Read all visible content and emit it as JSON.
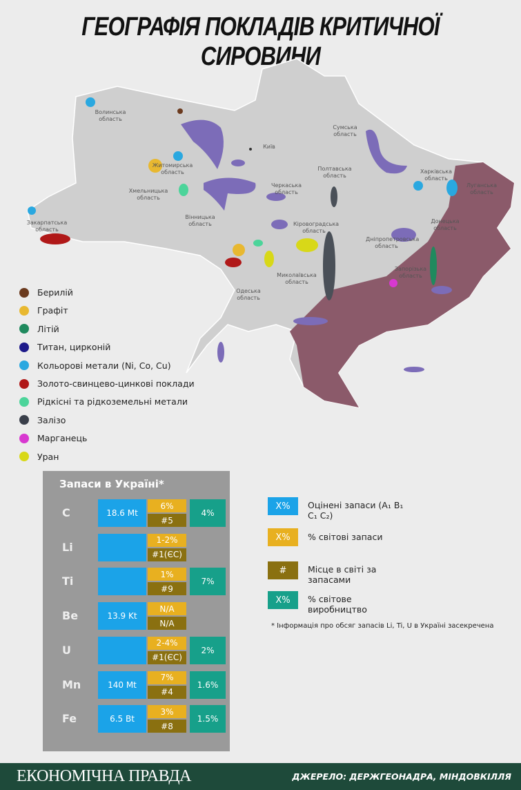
{
  "header": {
    "title": "ГЕОГРАФІЯ ПОКЛАДІВ КРИТИЧНОЇ СИРОВИНИ"
  },
  "map": {
    "regions": [
      "Волинська область",
      "Житомирська область",
      "Хмельницька область",
      "Вінницька область",
      "Закарпатська область",
      "Київ",
      "Черкаська область",
      "Сумська область",
      "Полтавська область",
      "Харківська область",
      "Луганська область",
      "Кіровоградська область",
      "Дніпропетровська область",
      "Донецька область",
      "Запорізька область",
      "Миколаївська область",
      "Одеська область"
    ]
  },
  "legend": {
    "items": [
      {
        "label": "Берилій",
        "color": "#6b3a1e"
      },
      {
        "label": "Графіт",
        "color": "#e8b830"
      },
      {
        "label": "Літій",
        "color": "#1f8a5e"
      },
      {
        "label": "Титан, цирконій",
        "color": "#1e1a8a"
      },
      {
        "label": "Кольорові метали (Ni, Co, Cu)",
        "color": "#2aa8e0"
      },
      {
        "label": "Золото-свинцево-цинкові поклади",
        "color": "#b01818"
      },
      {
        "label": "Рідкісні та рідкоземельні метали",
        "color": "#4cd49a"
      },
      {
        "label": "Залізо",
        "color": "#3a3f4a"
      },
      {
        "label": "Марганець",
        "color": "#d838d0"
      },
      {
        "label": "Уран",
        "color": "#d8d818"
      }
    ]
  },
  "table": {
    "title": "Запаси в Україні*",
    "rows": [
      {
        "element": "C",
        "reserves": "18.6 Mt",
        "world_share": "6%",
        "rank": "#5",
        "production": "4%"
      },
      {
        "element": "Li",
        "reserves": null,
        "world_share": "1-2%",
        "rank": "#1(ЄС)",
        "production": null
      },
      {
        "element": "Ti",
        "reserves": null,
        "world_share": "1%",
        "rank": "#9",
        "production": "7%"
      },
      {
        "element": "Be",
        "reserves": "13.9 Kt",
        "world_share": "N/A",
        "rank": "N/A",
        "production": null
      },
      {
        "element": "U",
        "reserves": null,
        "world_share": "2-4%",
        "rank": "#1(ЄС)",
        "production": "2%"
      },
      {
        "element": "Mn",
        "reserves": "140 Mt",
        "world_share": "7%",
        "rank": "#4",
        "production": "1.6%"
      },
      {
        "element": "Fe",
        "reserves": "6.5 Bt",
        "world_share": "3%",
        "rank": "#8",
        "production": "1.5%"
      }
    ]
  },
  "key": {
    "items": [
      {
        "symbol": "X%",
        "label": "Оцінені запаси (A₁ B₁ C₁ C₂)",
        "color": "#1ba3e8"
      },
      {
        "symbol": "X%",
        "label": "% світові запаси",
        "color": "#e8b020"
      },
      {
        "symbol": "#",
        "label": "Місце в світі за запасами",
        "color": "#8a7010"
      },
      {
        "symbol": "X%",
        "label": "% світове виробництво",
        "color": "#17a08a"
      }
    ]
  },
  "note": "* Інформація про обсяг запасів Li, Ti, U в Україні засекречена",
  "footer": {
    "brand": "ЕКОНОМІЧНА ПРАВДА",
    "source": "ДЖЕРЕЛО: ДЕРЖГЕОНАДРА, МІНДОВКІЛЛЯ"
  }
}
